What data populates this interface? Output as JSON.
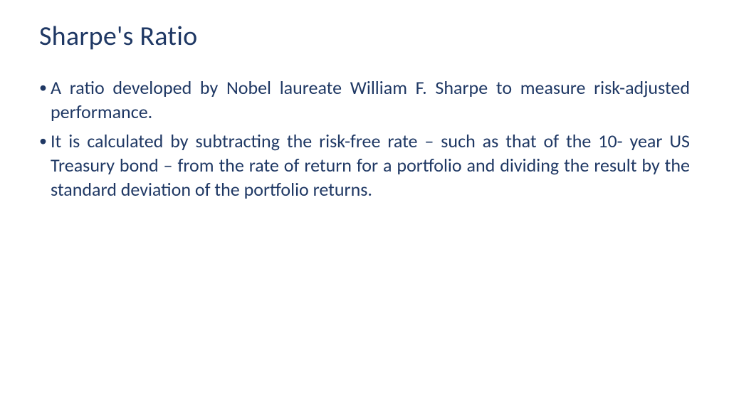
{
  "title": "Sharpe's Ratio",
  "title_color": "#1f3864",
  "body_color": "#1f3864",
  "background_color": "#ffffff",
  "title_fontsize": 38,
  "body_fontsize": 26,
  "bullets": [
    "A ratio developed by Nobel laureate William F. Sharpe to measure risk-adjusted performance.",
    "It is calculated by subtracting the risk-free rate – such as that of the 10- year US Treasury bond – from the rate of return for a portfolio and dividing the result by the standard deviation of the portfolio returns."
  ]
}
